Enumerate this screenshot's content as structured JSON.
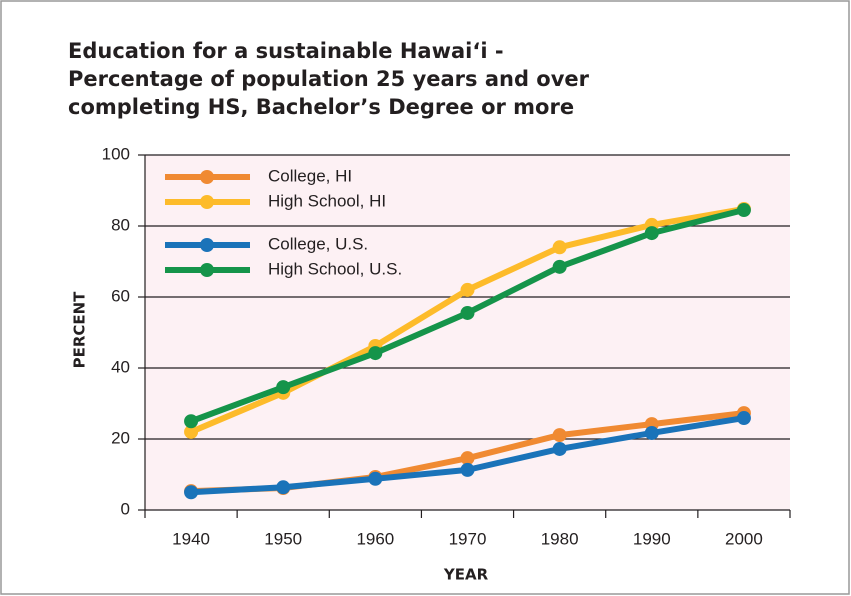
{
  "chart_data": {
    "type": "line",
    "title": [
      "Education for a sustainable Hawai‘i -",
      "Percentage of population 25 years and over",
      "completing HS, Bachelor’s Degree or more"
    ],
    "x_label": "YEAR",
    "y_label": "PERCENT",
    "categories": [
      "1940",
      "1950",
      "1960",
      "1970",
      "1980",
      "1990",
      "2000"
    ],
    "series": [
      {
        "name": "College, HI",
        "color": "#f08a32",
        "values": [
          5.3,
          6.2,
          9.3,
          14.6,
          21.1,
          24.2,
          27.3
        ]
      },
      {
        "name": "High School, HI",
        "color": "#fdbb2a",
        "values": [
          22,
          33,
          46.2,
          62,
          74,
          80.3,
          84.8
        ]
      },
      {
        "name": "College, U.S.",
        "color": "#1a73b9",
        "values": [
          5,
          6.4,
          8.8,
          11.3,
          17.2,
          21.7,
          25.9
        ]
      },
      {
        "name": "High School, U.S.",
        "color": "#15944a",
        "values": [
          25,
          34.6,
          44.2,
          55.5,
          68.5,
          78,
          84.5
        ]
      }
    ],
    "ylim": [
      0,
      100
    ],
    "yticks": [
      0,
      20,
      40,
      60,
      80,
      100
    ],
    "grid": true
  }
}
